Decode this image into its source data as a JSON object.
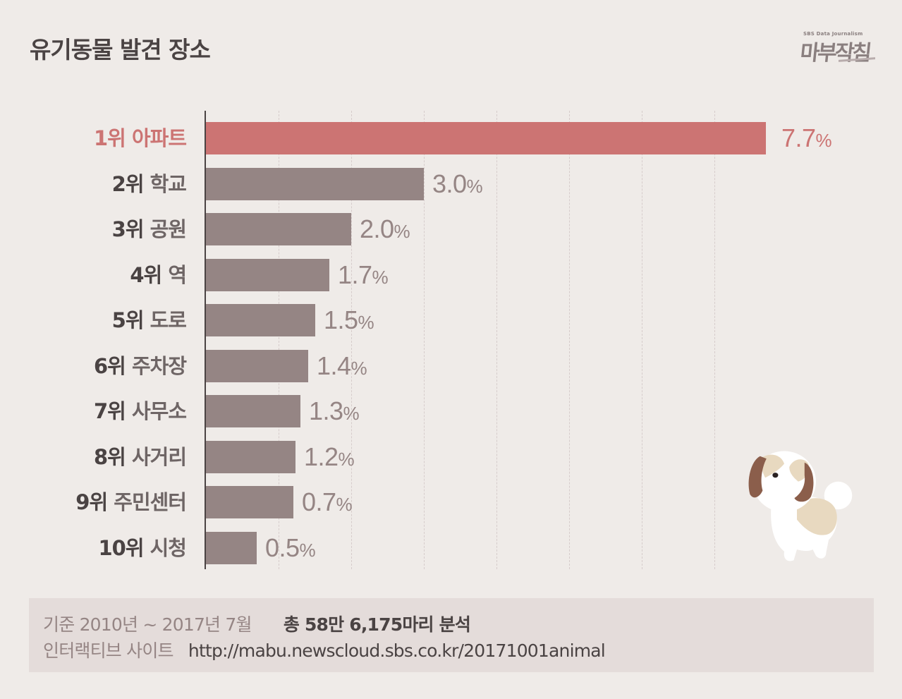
{
  "header": {
    "title": "유기동물 발견 장소",
    "logo": {
      "subtitle": "SBS Data Journalism",
      "name": "마부작침"
    }
  },
  "colors": {
    "background": "#efebe8",
    "highlight": "#cc7473",
    "bar": "#958584",
    "text_dark": "#4a4343",
    "footer_bg": "#e4dcda",
    "grid": "#d6cccb"
  },
  "chart": {
    "rows": [
      {
        "rank": "1위",
        "place": "아파트",
        "value": "7.7",
        "unit": "%"
      },
      {
        "rank": "2위",
        "place": "학교",
        "value": "3.0",
        "unit": "%"
      },
      {
        "rank": "3위",
        "place": "공원",
        "value": "2.0",
        "unit": "%"
      },
      {
        "rank": "4위",
        "place": "역",
        "value": "1.7",
        "unit": "%"
      },
      {
        "rank": "5위",
        "place": "도로",
        "value": "1.5",
        "unit": "%"
      },
      {
        "rank": "6위",
        "place": "주차장",
        "value": "1.4",
        "unit": "%"
      },
      {
        "rank": "7위",
        "place": "사무소",
        "value": "1.3",
        "unit": "%"
      },
      {
        "rank": "8위",
        "place": "사거리",
        "value": "1.2",
        "unit": "%"
      },
      {
        "rank": "9위",
        "place": "주민센터",
        "value": "0.7",
        "unit": "%"
      },
      {
        "rank": "10위",
        "place": "시청",
        "value": "0.5",
        "unit": "%"
      }
    ]
  },
  "chart_data": {
    "type": "bar",
    "orientation": "horizontal",
    "title": "유기동물 발견 장소",
    "categories": [
      "1위 아파트",
      "2위 학교",
      "3위 공원",
      "4위 역",
      "5위 도로",
      "6위 주차장",
      "7위 사무소",
      "8위 사거리",
      "9위 주민센터",
      "10위 시청"
    ],
    "values": [
      7.7,
      3.0,
      2.0,
      1.7,
      1.5,
      1.4,
      1.3,
      1.2,
      0.7,
      0.5
    ],
    "unit": "%",
    "xlabel": "",
    "ylabel": "",
    "grid": "vertical dashed",
    "highlight_index": 0,
    "legend": null
  },
  "footer": {
    "basis_label": "기준",
    "period": "2010년 ~ 2017년 7월",
    "total": "총 58만 6,175마리 분석",
    "site_label": "인터랙티브 사이트",
    "url": "http://mabu.newscloud.sbs.co.kr/20171001animal"
  }
}
